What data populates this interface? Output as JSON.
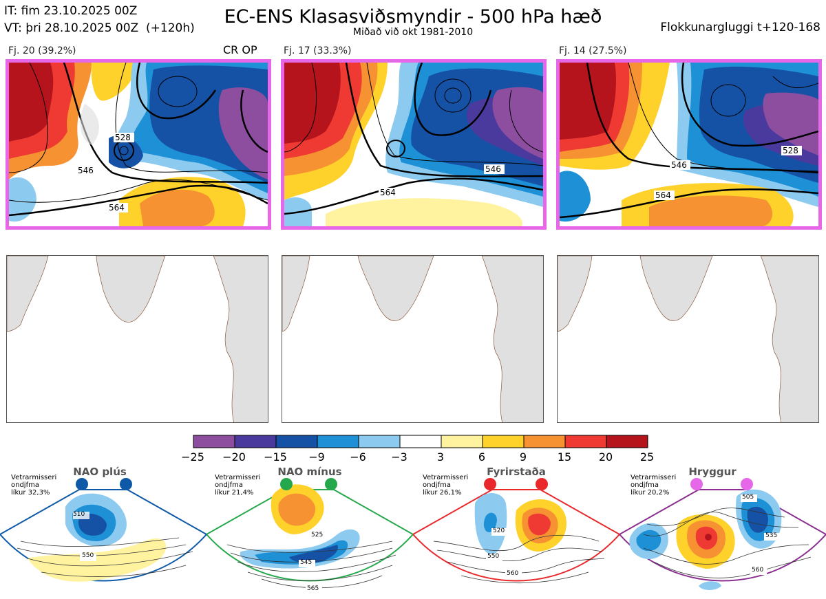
{
  "header": {
    "it": "IT: fim 23.10.2025 00Z",
    "vt": "VT: þri 28.10.2025 00Z  (+120h)",
    "title": "EC-ENS Klasasviðsmyndir - 500 hPa hæð",
    "subtitle": "Miðað við okt 1981-2010",
    "window": "Flokkunargluggi t+120-168"
  },
  "clusters": [
    {
      "label": "Fj. 20 (39.2%)",
      "members": 20,
      "percent": 39.2,
      "tag": "CR OP"
    },
    {
      "label": "Fj. 17 (33.3%)",
      "members": 17,
      "percent": 33.3,
      "tag": ""
    },
    {
      "label": "Fj. 14 (27.5%)",
      "members": 14,
      "percent": 27.5,
      "tag": ""
    }
  ],
  "contour_labels": [
    "564",
    "546",
    "528"
  ],
  "colorbar": {
    "ticks": [
      "−25",
      "−20",
      "−15",
      "−9",
      "−6",
      "−3",
      "3",
      "6",
      "9",
      "15",
      "20",
      "25"
    ],
    "colors": [
      "#8e4ea0",
      "#4b3a9e",
      "#1552a6",
      "#1e90d6",
      "#8ccaf0",
      "#ffffff",
      "#fff3a0",
      "#fed22a",
      "#f79232",
      "#ee3a33",
      "#b5141c"
    ]
  },
  "regimes": [
    {
      "name": "NAO plús",
      "note1": "Vetrarmisseri",
      "note2": "ondjfma",
      "note3": "líkur 32,3%",
      "color": "#0d59a7",
      "labels": [
        "510",
        "550"
      ]
    },
    {
      "name": "NAO mínus",
      "note1": "Vetrarmisseri",
      "note2": "ondjfma",
      "note3": "líkur 21,4%",
      "color": "#25a84b",
      "labels": [
        "525",
        "545",
        "565"
      ]
    },
    {
      "name": "Fyrirstaða",
      "note1": "Vetrarmisseri",
      "note2": "ondjfma",
      "note3": "líkur 26,1%",
      "color": "#e8282b",
      "labels": [
        "520",
        "550",
        "560"
      ]
    },
    {
      "name": "Hryggur",
      "note1": "Vetrarmisseri",
      "note2": "ondjfma",
      "note3": "líkur 20,2%",
      "color": "#8a2e90",
      "labels": [
        "505",
        "535",
        "560"
      ]
    }
  ]
}
